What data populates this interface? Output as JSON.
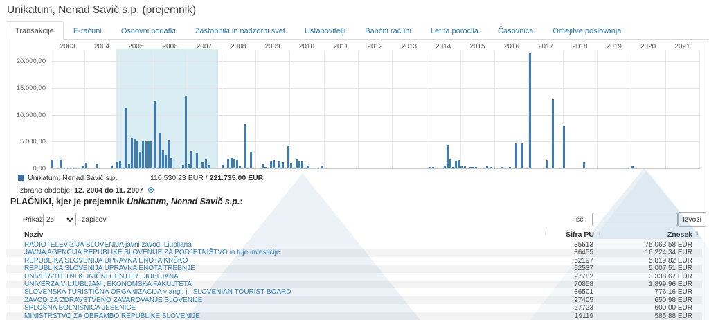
{
  "header": {
    "title": "Unikatum, Nenad Savič s.p. (prejemnik)"
  },
  "tabs": [
    {
      "label": "Transakcije",
      "active": true
    },
    {
      "label": "E-računi"
    },
    {
      "label": "Osnovni podatki"
    },
    {
      "label": "Zastopniki in nadzorni svet"
    },
    {
      "label": "Ustanovitelji"
    },
    {
      "label": "Bančni računi"
    },
    {
      "label": "Letna poročila"
    },
    {
      "label": "Časovnica"
    },
    {
      "label": "Omejitve poslovanja"
    }
  ],
  "chart_data": {
    "type": "bar",
    "unit": "EUR",
    "series_name": "Unikatum, Nenad Savič s.p.",
    "years": [
      2003,
      2004,
      2005,
      2006,
      2007,
      2008,
      2009,
      2010,
      2011,
      2012,
      2013,
      2014,
      2015,
      2016,
      2017,
      2018,
      2019,
      2020,
      2021
    ],
    "y_ticks": [
      {
        "value": 0,
        "label": "0,00"
      },
      {
        "value": 5000,
        "label": "5.000,00"
      },
      {
        "value": 10000,
        "label": "10.000,00"
      },
      {
        "value": 15000,
        "label": "15.000,00"
      },
      {
        "value": 20000,
        "label": "20.000,00"
      }
    ],
    "ylim": [
      0,
      22000
    ],
    "grid": true,
    "bars_format": "[year, month, value_eur_approx]",
    "bars": [
      [
        2003,
        1,
        1600
      ],
      [
        2003,
        4,
        1570
      ],
      [
        2003,
        5,
        180
      ],
      [
        2003,
        6,
        130
      ],
      [
        2003,
        8,
        60
      ],
      [
        2003,
        12,
        350
      ],
      [
        2004,
        1,
        1000
      ],
      [
        2004,
        5,
        780
      ],
      [
        2004,
        10,
        570
      ],
      [
        2004,
        12,
        1200
      ],
      [
        2005,
        1,
        1250
      ],
      [
        2005,
        3,
        11300
      ],
      [
        2005,
        4,
        750
      ],
      [
        2005,
        5,
        5650
      ],
      [
        2005,
        6,
        5600
      ],
      [
        2005,
        7,
        5000
      ],
      [
        2005,
        8,
        3150
      ],
      [
        2005,
        9,
        5000
      ],
      [
        2005,
        10,
        5000
      ],
      [
        2005,
        11,
        5000
      ],
      [
        2005,
        12,
        5000
      ],
      [
        2006,
        1,
        12500
      ],
      [
        2006,
        3,
        6650
      ],
      [
        2006,
        4,
        3350
      ],
      [
        2006,
        5,
        2450
      ],
      [
        2006,
        6,
        5300
      ],
      [
        2006,
        7,
        1900
      ],
      [
        2006,
        11,
        700
      ],
      [
        2006,
        12,
        13600
      ],
      [
        2007,
        1,
        800
      ],
      [
        2007,
        2,
        3250
      ],
      [
        2007,
        4,
        2850
      ],
      [
        2007,
        6,
        1100
      ],
      [
        2007,
        7,
        1650
      ],
      [
        2007,
        8,
        700
      ],
      [
        2008,
        1,
        700
      ],
      [
        2008,
        3,
        1800
      ],
      [
        2008,
        4,
        1900
      ],
      [
        2008,
        5,
        1750
      ],
      [
        2008,
        6,
        1500
      ],
      [
        2008,
        7,
        350
      ],
      [
        2008,
        9,
        8250
      ],
      [
        2008,
        11,
        3000
      ],
      [
        2009,
        3,
        750
      ],
      [
        2009,
        4,
        200
      ],
      [
        2009,
        6,
        1300
      ],
      [
        2009,
        7,
        1600
      ],
      [
        2009,
        9,
        1300
      ],
      [
        2009,
        10,
        1150
      ],
      [
        2009,
        12,
        4100
      ],
      [
        2010,
        1,
        850
      ],
      [
        2010,
        3,
        1700
      ],
      [
        2010,
        4,
        1450
      ],
      [
        2010,
        5,
        1250
      ],
      [
        2010,
        7,
        500
      ],
      [
        2010,
        10,
        100
      ],
      [
        2010,
        12,
        550
      ],
      [
        2014,
        2,
        200
      ],
      [
        2014,
        3,
        200
      ],
      [
        2014,
        7,
        500
      ],
      [
        2014,
        8,
        4250
      ],
      [
        2014,
        9,
        1700
      ],
      [
        2014,
        10,
        250
      ],
      [
        2014,
        11,
        1400
      ],
      [
        2014,
        12,
        1550
      ],
      [
        2015,
        1,
        400
      ],
      [
        2015,
        2,
        450
      ],
      [
        2015,
        4,
        250
      ],
      [
        2015,
        5,
        250
      ],
      [
        2015,
        6,
        250
      ],
      [
        2015,
        10,
        350
      ],
      [
        2015,
        11,
        200
      ],
      [
        2016,
        1,
        150
      ],
      [
        2016,
        3,
        300
      ],
      [
        2016,
        6,
        250
      ],
      [
        2016,
        8,
        4600
      ],
      [
        2016,
        10,
        4650
      ],
      [
        2017,
        1,
        21500
      ],
      [
        2017,
        7,
        1550
      ],
      [
        2017,
        9,
        12900
      ],
      [
        2018,
        1,
        7900
      ],
      [
        2018,
        8,
        1100
      ],
      [
        2019,
        11,
        150
      ],
      [
        2020,
        1,
        350
      ]
    ],
    "selection": {
      "display": "12. 2004 do 11. 2007",
      "start": {
        "year": 2004,
        "month": 12
      },
      "end": {
        "year": 2007,
        "month": 11
      }
    },
    "sums": {
      "selected_display": "110.530,23 EUR",
      "separator": " / ",
      "total_display": "221.735,00 EUR"
    },
    "colors": {
      "bar": "#3e7cb8",
      "selection_bg": "#d9edf3",
      "legend_swatch": "#3b6ea5"
    }
  },
  "ui": {
    "period_prefix": "Izbrano obdobje:",
    "reset_icon": "⊗",
    "heading_prefix": "PLAČNIKI, kjer je prejemnik",
    "company": "Unikatum, Nenad Savič s.p.",
    "heading_suffix": ":",
    "sort_up": "↑",
    "sort_down": "↓"
  },
  "controls": {
    "show_label": "Prikaži",
    "page_size": "25",
    "records_label": "zapisov",
    "search_label": "Išči:",
    "search_value": "",
    "export_label": "Izvozi"
  },
  "table": {
    "columns": [
      {
        "label": "Naziv",
        "sort": "none"
      },
      {
        "label": "Šifra PU",
        "sort": "none"
      },
      {
        "label": "Znesek",
        "sort": "desc"
      }
    ],
    "rows": [
      {
        "naziv": "RADIOTELEVIZIJA SLOVENIJA javni zavod, Ljubljana",
        "sifra": "35513",
        "znesek": "75.063,58 EUR"
      },
      {
        "naziv": "JAVNA AGENCIJA REPUBLIKE SLOVENIJE ZA PODJETNIŠTVO in tuje investicije",
        "sifra": "36455",
        "znesek": "16.224,34 EUR"
      },
      {
        "naziv": "REPUBLIKA SLOVENIJA UPRAVNA ENOTA KRŠKO",
        "sifra": "62197",
        "znesek": "5.819,82 EUR"
      },
      {
        "naziv": "REPUBLIKA SLOVENIJA UPRAVNA ENOTA TREBNJE",
        "sifra": "62537",
        "znesek": "5.007,51 EUR"
      },
      {
        "naziv": "UNIVERZITETNI KLINIČNI CENTER LJUBLJANA",
        "sifra": "27782",
        "znesek": "3.338,67 EUR"
      },
      {
        "naziv": "UNIVERZA V LJUBLJANI, EKONOMSKA FAKULTETA",
        "sifra": "70858",
        "znesek": "1.899,96 EUR"
      },
      {
        "naziv": "SLOVENSKA TURISTIČNA ORGANIZACIJA v angl. j.: SLOVENIAN TOURIST BOARD",
        "sifra": "36501",
        "znesek": "776,16 EUR"
      },
      {
        "naziv": "ZAVOD ZA ZDRAVSTVENO ZAVAROVANJE SLOVENIJE",
        "sifra": "27405",
        "znesek": "650,98 EUR"
      },
      {
        "naziv": "SPLOŠNA BOLNIŠNICA JESENICE",
        "sifra": "27723",
        "znesek": "600,00 EUR"
      },
      {
        "naziv": "MINISTRSTVO ZA OBRAMBO REPUBLIKE SLOVENIJE",
        "sifra": "19119",
        "znesek": "585,88 EUR"
      }
    ]
  }
}
